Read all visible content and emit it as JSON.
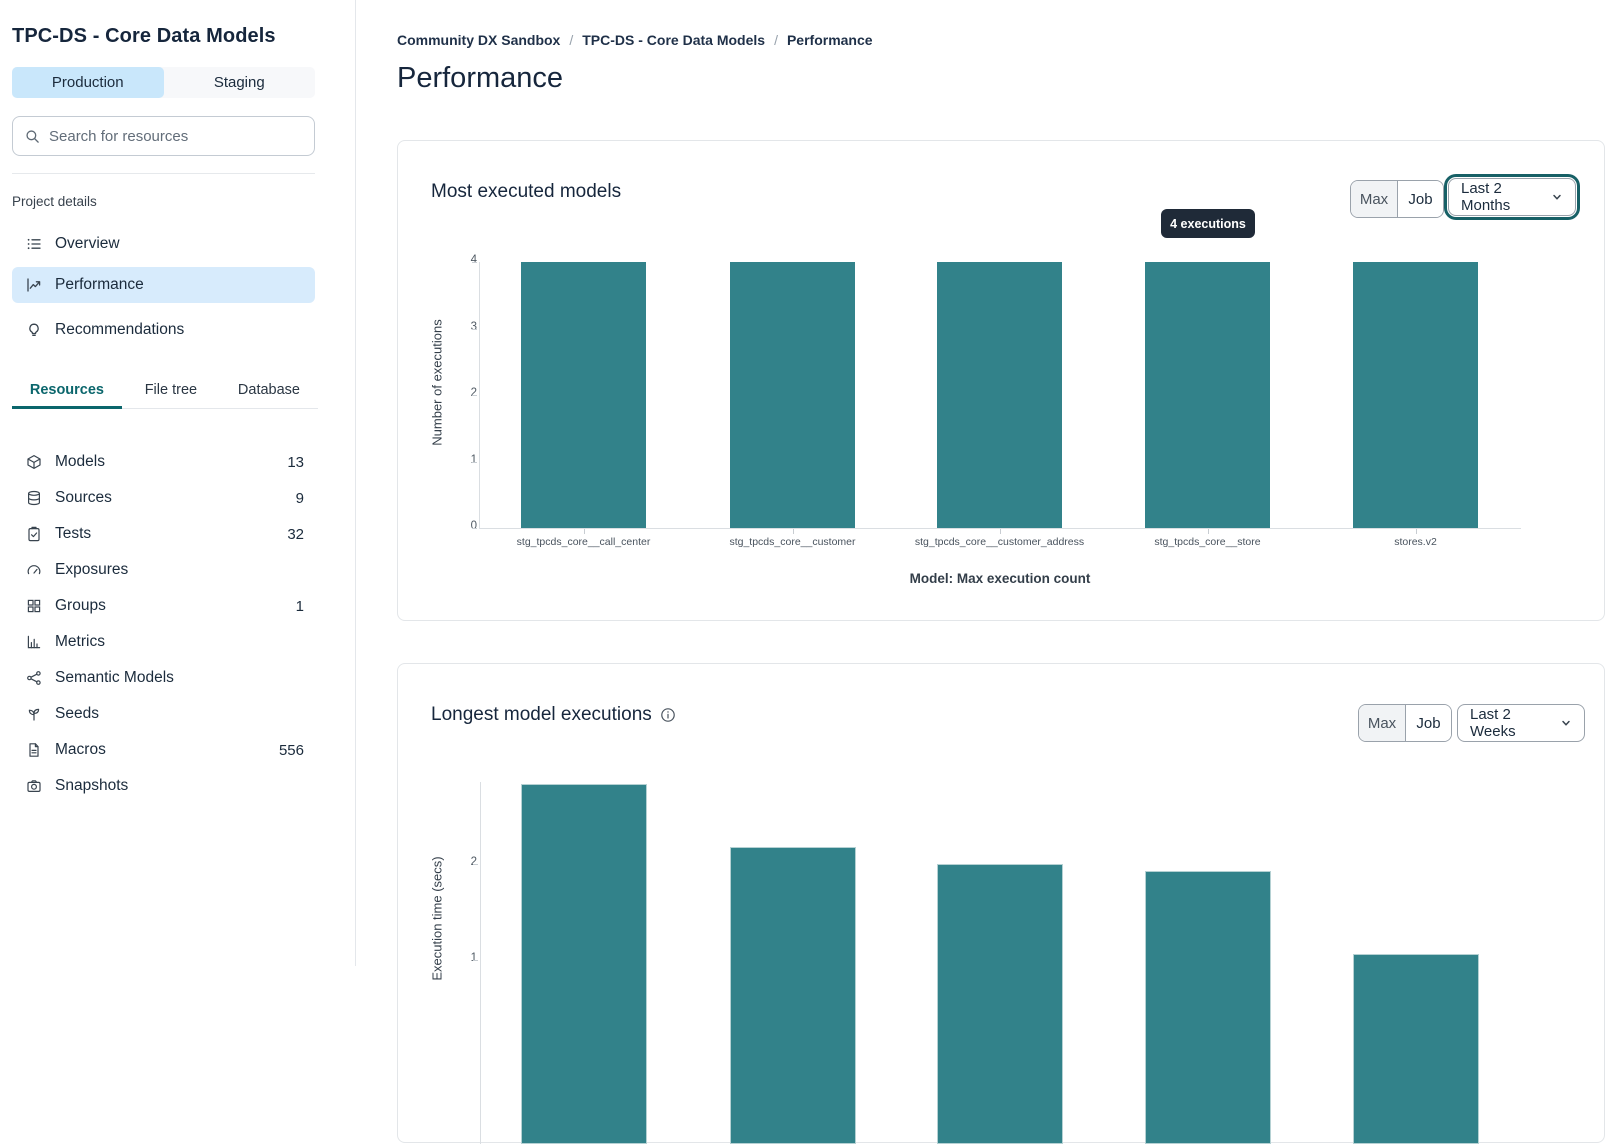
{
  "sidebar": {
    "title": "TPC-DS - Core Data Models",
    "env_tabs": [
      {
        "label": "Production",
        "active": true
      },
      {
        "label": "Staging",
        "active": false
      }
    ],
    "search": {
      "placeholder": "Search for resources"
    },
    "project_details": {
      "label": "Project details",
      "items": [
        {
          "label": "Overview",
          "icon": "list-icon",
          "active": false
        },
        {
          "label": "Performance",
          "icon": "line-chart-icon",
          "active": true
        },
        {
          "label": "Recommendations",
          "icon": "lightbulb-icon",
          "active": false
        }
      ]
    },
    "resource_tabs": [
      {
        "label": "Resources",
        "active": true
      },
      {
        "label": "File tree",
        "active": false
      },
      {
        "label": "Database",
        "active": false
      }
    ],
    "resources": [
      {
        "label": "Models",
        "count": "13",
        "icon": "cube-icon"
      },
      {
        "label": "Sources",
        "count": "9",
        "icon": "database-icon"
      },
      {
        "label": "Tests",
        "count": "32",
        "icon": "clipboard-check-icon"
      },
      {
        "label": "Exposures",
        "count": "",
        "icon": "gauge-icon"
      },
      {
        "label": "Groups",
        "count": "1",
        "icon": "grid-icon"
      },
      {
        "label": "Metrics",
        "count": "",
        "icon": "bar-chart-icon"
      },
      {
        "label": "Semantic Models",
        "count": "",
        "icon": "nodes-icon"
      },
      {
        "label": "Seeds",
        "count": "",
        "icon": "sprout-icon"
      },
      {
        "label": "Macros",
        "count": "556",
        "icon": "file-icon"
      },
      {
        "label": "Snapshots",
        "count": "",
        "icon": "camera-icon"
      }
    ]
  },
  "main": {
    "breadcrumb": {
      "items": [
        "Community DX Sandbox",
        "TPC-DS - Core Data Models",
        "Performance"
      ],
      "separator": "/"
    },
    "page_title": "Performance"
  },
  "chart_data": [
    {
      "type": "bar",
      "title": "Most executed models",
      "categories": [
        "stg_tpcds_core__call_center",
        "stg_tpcds_core__customer",
        "stg_tpcds_core__customer_address",
        "stg_tpcds_core__store",
        "stores.v2"
      ],
      "values": [
        4,
        4,
        4,
        4,
        4
      ],
      "xlabel": "Model: Max execution count",
      "ylabel": "Number of executions",
      "ylim": [
        0,
        4
      ],
      "yticks": [
        0,
        1,
        2,
        3,
        4
      ],
      "bar_color": "#32828A",
      "tooltip": "4 executions",
      "controls": {
        "view_options": [
          "Max",
          "Job"
        ],
        "time_range": "Last 2 Months"
      }
    },
    {
      "type": "bar",
      "title": "Longest model executions",
      "values": [
        2.83,
        2.17,
        2.0,
        1.92,
        1.07
      ],
      "ylabel": "Execution time (secs)",
      "yticks": [
        1,
        2
      ],
      "bar_color": "#32828A",
      "controls": {
        "view_options": [
          "Max",
          "Job"
        ],
        "time_range": "Last 2 Weeks"
      }
    }
  ]
}
